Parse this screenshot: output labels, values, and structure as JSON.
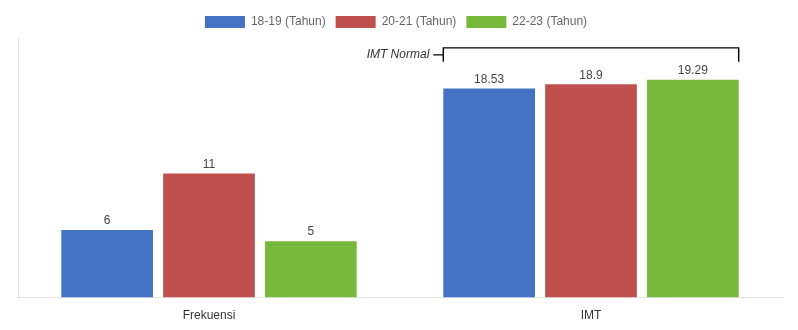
{
  "chart_data": {
    "type": "bar",
    "categories": [
      "Frekuensi",
      "IMT"
    ],
    "series": [
      {
        "name": "18-19 (Tahun)",
        "color": "#4472C4",
        "values": [
          6,
          18.53
        ]
      },
      {
        "name": "20-21 (Tahun)",
        "color": "#C0504D",
        "values": [
          11,
          18.9
        ]
      },
      {
        "name": "22-23 (Tahun)",
        "color": "#77B93A",
        "values": [
          5,
          19.29
        ]
      }
    ],
    "ylim": [
      0,
      23
    ],
    "grid": false,
    "legend": "top",
    "data_labels": true,
    "tick_labels": "x",
    "annotation": {
      "text": "IMT Normal",
      "category": "IMT"
    }
  }
}
